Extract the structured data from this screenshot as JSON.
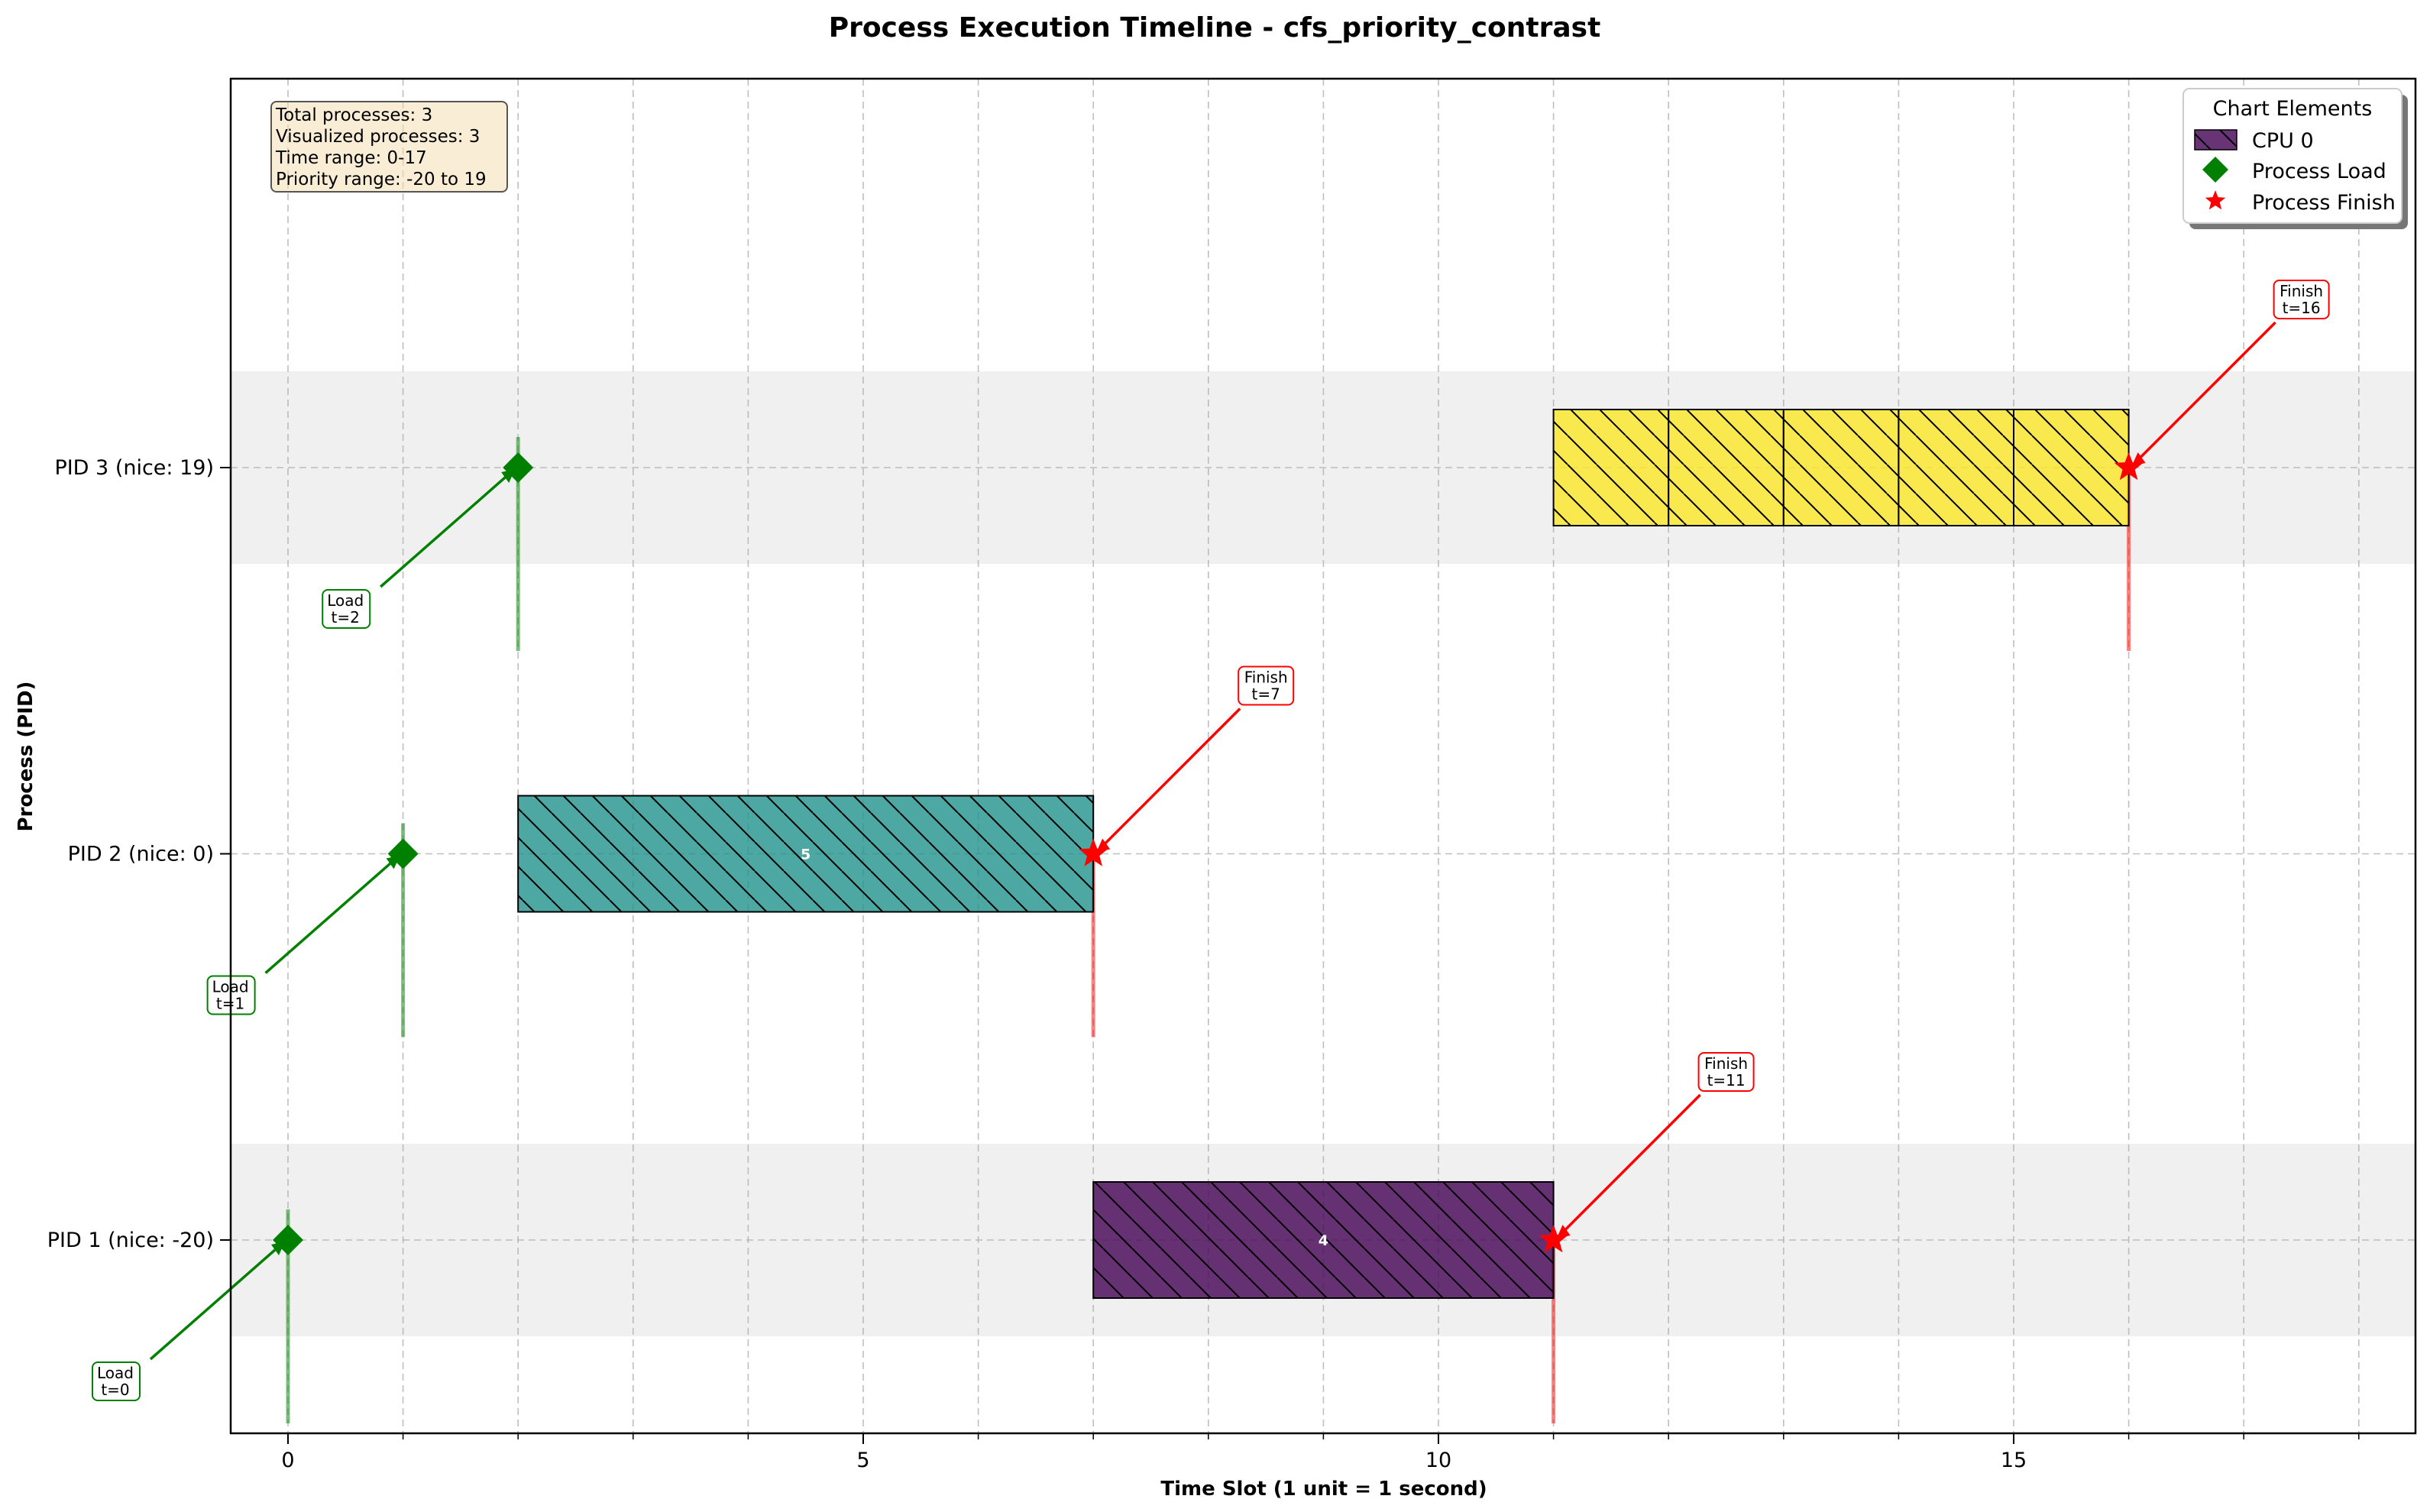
{
  "chart_data": {
    "type": "gantt",
    "title": "Process Execution Timeline - cfs_priority_contrast",
    "xlabel": "Time Slot (1 unit = 1 second)",
    "ylabel": "Process (PID)",
    "xlim": [
      -0.5,
      18.5
    ],
    "x_ticks": [
      0,
      5,
      10,
      15
    ],
    "x_minor_ticks": [
      1,
      2,
      3,
      4,
      6,
      7,
      8,
      9,
      11,
      12,
      13,
      14,
      16,
      17,
      18
    ],
    "grid": true,
    "rows": [
      {
        "label": "PID 1 (nice: -20)",
        "pid": 1,
        "shaded": true
      },
      {
        "label": "PID 2 (nice: 0)",
        "pid": 2,
        "shaded": false
      },
      {
        "label": "PID 3 (nice: 19)",
        "pid": 3,
        "shaded": true
      }
    ],
    "segments": [
      {
        "pid": 1,
        "start": 7,
        "end": 11,
        "label": "4",
        "color": "#440154"
      },
      {
        "pid": 2,
        "start": 2,
        "end": 7,
        "label": "5",
        "color": "#21918c"
      },
      {
        "pid": 3,
        "start": 11,
        "end": 12,
        "label": "",
        "color": "#fde725"
      },
      {
        "pid": 3,
        "start": 12,
        "end": 13,
        "label": "",
        "color": "#fde725"
      },
      {
        "pid": 3,
        "start": 13,
        "end": 14,
        "label": "",
        "color": "#fde725"
      },
      {
        "pid": 3,
        "start": 14,
        "end": 15,
        "label": "",
        "color": "#fde725"
      },
      {
        "pid": 3,
        "start": 15,
        "end": 16,
        "label": "",
        "color": "#fde725"
      }
    ],
    "load_events": [
      {
        "pid": 1,
        "t": 0,
        "label_line1": "Load",
        "label_line2": "t=0"
      },
      {
        "pid": 2,
        "t": 1,
        "label_line1": "Load",
        "label_line2": "t=1"
      },
      {
        "pid": 3,
        "t": 2,
        "label_line1": "Load",
        "label_line2": "t=2"
      }
    ],
    "finish_events": [
      {
        "pid": 1,
        "t": 11,
        "label_line1": "Finish",
        "label_line2": "t=11"
      },
      {
        "pid": 2,
        "t": 7,
        "label_line1": "Finish",
        "label_line2": "t=7"
      },
      {
        "pid": 3,
        "t": 16,
        "label_line1": "Finish",
        "label_line2": "t=16"
      }
    ],
    "info_box": [
      "Total processes: 3",
      "Visualized processes: 3",
      "Time range: 0-17",
      "Priority range: -20 to 19"
    ],
    "legend": {
      "title": "Chart Elements",
      "position": "top-right",
      "items": [
        {
          "label": "CPU 0",
          "kind": "bar",
          "color": "#440154"
        },
        {
          "label": "Process Load",
          "kind": "diamond",
          "color": "#008000"
        },
        {
          "label": "Process Finish",
          "kind": "star",
          "color": "#ff0000"
        }
      ]
    },
    "colors": {
      "load": "#008000",
      "finish": "#ff0000",
      "row_shade": "#f0f0f0",
      "info_bg": "#f5deb3"
    }
  }
}
